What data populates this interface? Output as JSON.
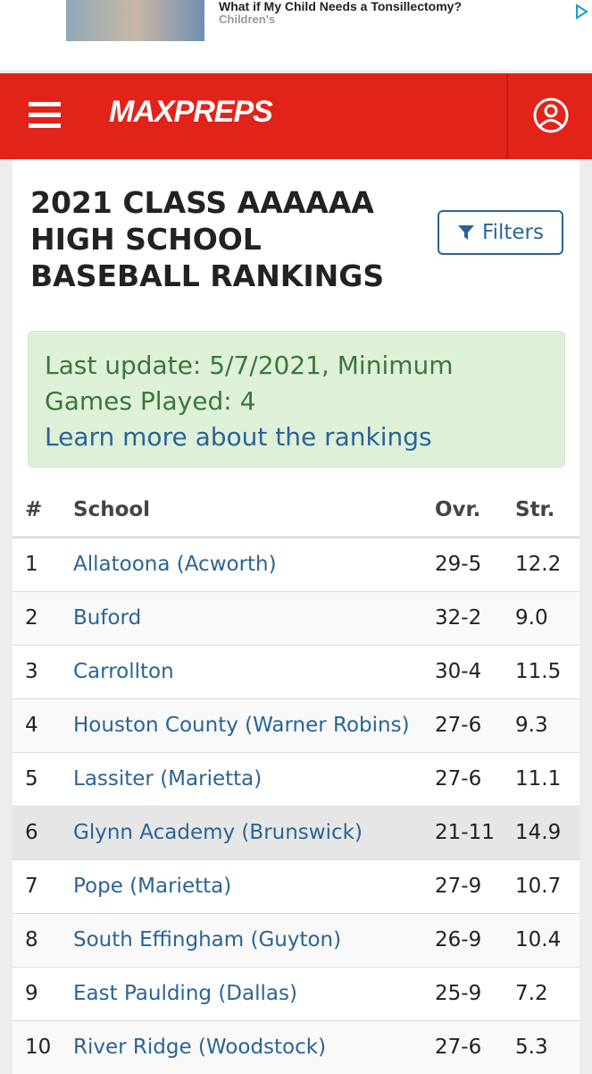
{
  "ad": {
    "title": "What if My Child Needs a Tonsillectomy?",
    "source": "Children's"
  },
  "header": {
    "logo": "MAXPREPS"
  },
  "page": {
    "title": "2021 CLASS AAAAAA HIGH SCHOOL BASEBALL RANKINGS",
    "filter_button": "Filters"
  },
  "notice": {
    "text": "Last update: 5/7/2021, Minimum Games Played: 4",
    "link": "Learn more about the rankings"
  },
  "table": {
    "columns": [
      "#",
      "School",
      "Ovr.",
      "Str."
    ],
    "rows": [
      [
        1,
        "Allatoona (Acworth)",
        "29-5",
        "12.2"
      ],
      [
        2,
        "Buford",
        "32-2",
        "9.0"
      ],
      [
        3,
        "Carrollton",
        "30-4",
        "11.5"
      ],
      [
        4,
        "Houston County (Warner Robins)",
        "27-6",
        "9.3"
      ],
      [
        5,
        "Lassiter (Marietta)",
        "27-6",
        "11.1"
      ],
      [
        6,
        "Glynn Academy (Brunswick)",
        "21-11",
        "14.9"
      ],
      [
        7,
        "Pope (Marietta)",
        "27-9",
        "10.7"
      ],
      [
        8,
        "South Effingham (Guyton)",
        "26-9",
        "10.4"
      ],
      [
        9,
        "East Paulding (Dallas)",
        "25-9",
        "7.2"
      ],
      [
        10,
        "River Ridge (Woodstock)",
        "27-6",
        "5.3"
      ]
    ]
  }
}
